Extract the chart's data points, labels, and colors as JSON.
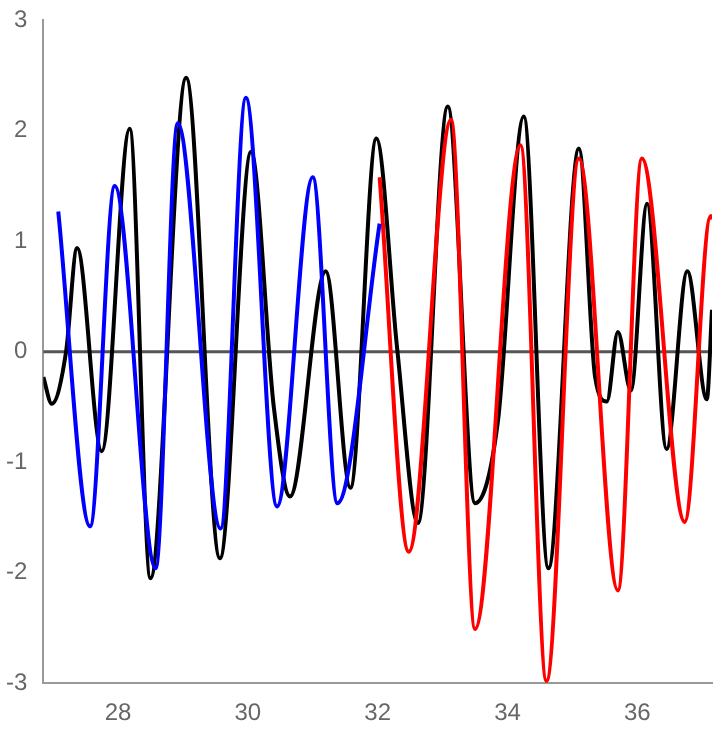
{
  "chart_data": {
    "type": "line",
    "xlim": [
      26.85,
      37.15
    ],
    "ylim": [
      -3,
      3
    ],
    "xticks": [
      28,
      30,
      32,
      34,
      36
    ],
    "yticks": [
      -3,
      -2,
      -1,
      0,
      1,
      2,
      3
    ],
    "grid": false,
    "legend": false,
    "marker": "none",
    "line_style": "solid",
    "ref_lines": [
      {
        "axis": "y",
        "value": 0,
        "color": "#555555"
      }
    ],
    "series": [
      {
        "color": "#0000ff",
        "x": [
          27.08,
          27.57,
          27.95,
          28.58,
          28.92,
          29.58,
          29.97,
          30.45,
          31.0,
          31.38,
          32.03
        ],
        "values": [
          1.27,
          -1.58,
          1.5,
          -1.96,
          2.07,
          -1.6,
          2.3,
          -1.4,
          1.58,
          -1.37,
          1.16
        ]
      },
      {
        "color": "#ff0000",
        "x": [
          32.03,
          32.48,
          33.13,
          33.5,
          34.2,
          34.6,
          35.1,
          35.7,
          36.07,
          36.73,
          37.13,
          37.15
        ],
        "values": [
          1.58,
          -1.81,
          2.1,
          -2.51,
          1.87,
          -2.98,
          1.75,
          -2.16,
          1.75,
          -1.54,
          1.23,
          1.2
        ]
      },
      {
        "color": "#000000",
        "x": [
          26.85,
          26.98,
          27.2,
          27.37,
          27.75,
          28.18,
          28.5,
          29.05,
          29.57,
          30.05,
          30.4,
          30.65,
          31.2,
          31.58,
          31.98,
          32.3,
          32.62,
          33.08,
          33.5,
          33.85,
          34.25,
          34.63,
          35.1,
          35.35,
          35.53,
          35.7,
          35.9,
          36.15,
          36.45,
          36.77,
          37.07,
          37.15
        ],
        "values": [
          -0.23,
          -0.47,
          0,
          0.94,
          -0.9,
          2.02,
          -2.05,
          2.48,
          -1.87,
          1.81,
          -0.5,
          -1.31,
          0.73,
          -1.23,
          1.93,
          0.03,
          -1.55,
          2.22,
          -1.37,
          -0.64,
          2.13,
          -1.96,
          1.84,
          -0.23,
          -0.45,
          0.18,
          -0.35,
          1.34,
          -0.88,
          0.73,
          -0.43,
          0.38
        ]
      }
    ]
  }
}
